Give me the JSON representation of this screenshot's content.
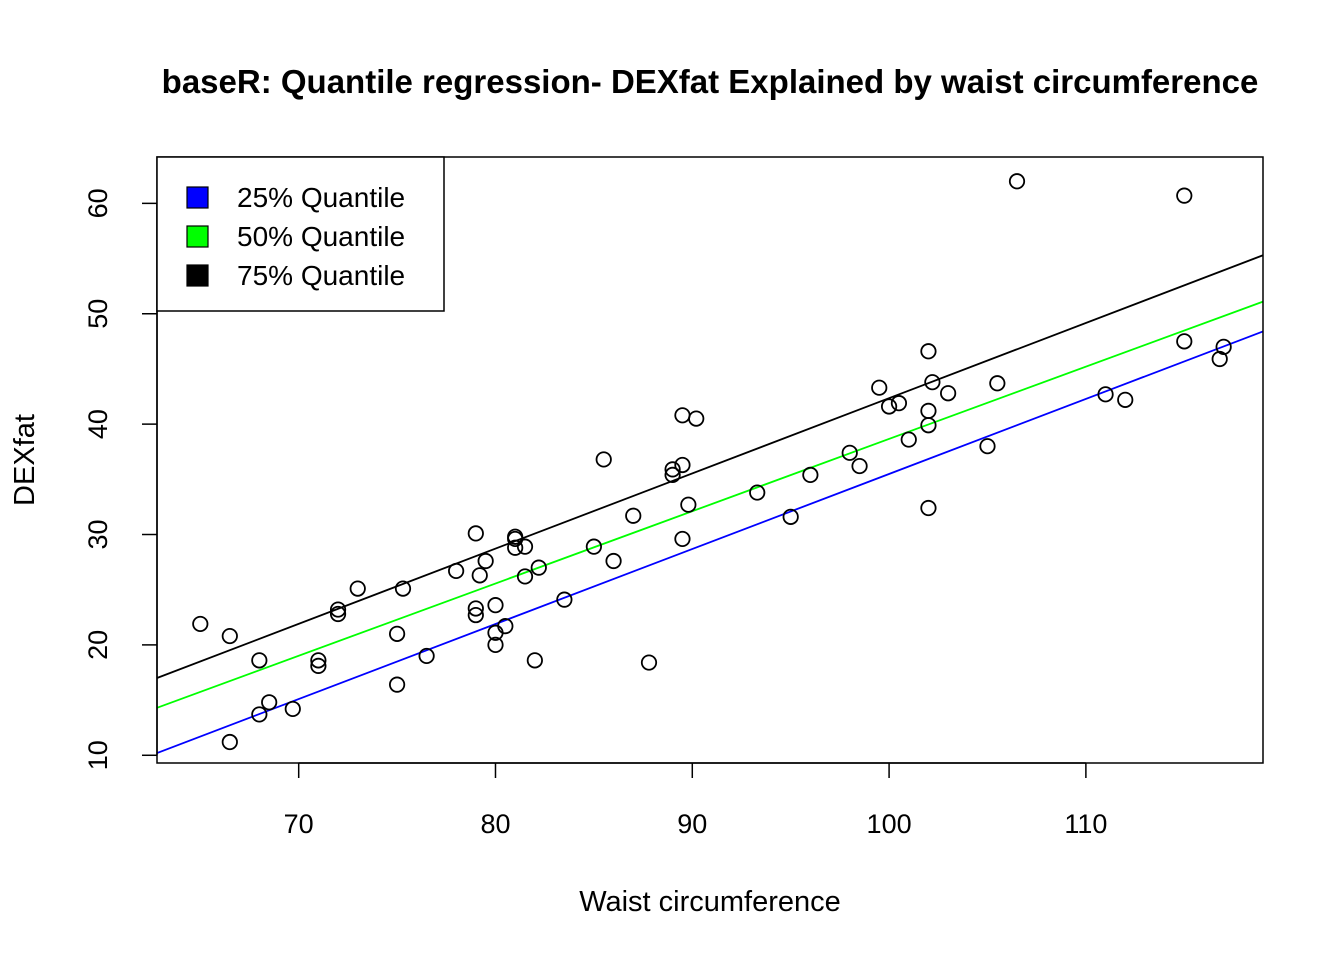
{
  "chart_data": {
    "type": "scatter",
    "title": "baseR: Quantile regression- DEXfat Explained by waist circumference",
    "xlabel": "Waist circumference",
    "ylabel": "DEXfat",
    "xlim": [
      62.8,
      119
    ],
    "ylim": [
      9.3,
      64.2
    ],
    "x_ticks": [
      70,
      80,
      90,
      100,
      110
    ],
    "y_ticks": [
      10,
      20,
      30,
      40,
      50,
      60
    ],
    "grid": false,
    "legend_position": "top-left",
    "legend": [
      {
        "label": "25% Quantile",
        "color": "#0000ff"
      },
      {
        "label": "50% Quantile",
        "color": "#00ff00"
      },
      {
        "label": "75% Quantile",
        "color": "#000000"
      }
    ],
    "lines": [
      {
        "name": "25% Quantile",
        "color": "#0000ff",
        "x": [
          62.8,
          119
        ],
        "y": [
          10.2,
          48.4
        ]
      },
      {
        "name": "50% Quantile",
        "color": "#00ff00",
        "x": [
          62.8,
          119
        ],
        "y": [
          14.3,
          51.1
        ]
      },
      {
        "name": "75% Quantile",
        "color": "#000000",
        "x": [
          62.8,
          119
        ],
        "y": [
          17.0,
          55.3
        ]
      }
    ],
    "points": [
      [
        65.0,
        21.9
      ],
      [
        66.5,
        20.8
      ],
      [
        66.5,
        11.2
      ],
      [
        68.0,
        18.6
      ],
      [
        68.0,
        13.7
      ],
      [
        68.5,
        14.8
      ],
      [
        69.7,
        14.2
      ],
      [
        71.0,
        18.6
      ],
      [
        71.0,
        18.1
      ],
      [
        72.0,
        23.2
      ],
      [
        72.0,
        22.8
      ],
      [
        73.0,
        25.1
      ],
      [
        75.0,
        21.0
      ],
      [
        75.0,
        16.4
      ],
      [
        75.3,
        25.1
      ],
      [
        76.5,
        19.0
      ],
      [
        78.0,
        26.7
      ],
      [
        79.0,
        30.1
      ],
      [
        79.0,
        23.3
      ],
      [
        79.0,
        22.7
      ],
      [
        79.2,
        26.3
      ],
      [
        79.5,
        27.6
      ],
      [
        80.0,
        23.6
      ],
      [
        80.0,
        21.1
      ],
      [
        80.0,
        20.0
      ],
      [
        80.5,
        21.7
      ],
      [
        81.0,
        29.8
      ],
      [
        81.0,
        29.6
      ],
      [
        81.0,
        28.8
      ],
      [
        81.5,
        28.9
      ],
      [
        81.5,
        26.2
      ],
      [
        82.0,
        18.6
      ],
      [
        82.2,
        27.0
      ],
      [
        83.5,
        24.1
      ],
      [
        85.0,
        28.9
      ],
      [
        85.5,
        36.8
      ],
      [
        86.0,
        27.6
      ],
      [
        87.0,
        31.7
      ],
      [
        87.8,
        18.4
      ],
      [
        89.0,
        35.9
      ],
      [
        89.0,
        35.4
      ],
      [
        89.5,
        40.8
      ],
      [
        89.5,
        36.3
      ],
      [
        89.5,
        29.6
      ],
      [
        89.8,
        32.7
      ],
      [
        90.2,
        40.5
      ],
      [
        93.3,
        33.8
      ],
      [
        95.0,
        31.6
      ],
      [
        96.0,
        35.4
      ],
      [
        98.0,
        37.4
      ],
      [
        98.5,
        36.2
      ],
      [
        99.5,
        43.3
      ],
      [
        100.0,
        41.6
      ],
      [
        100.5,
        41.9
      ],
      [
        101.0,
        38.6
      ],
      [
        102.0,
        46.6
      ],
      [
        102.0,
        41.2
      ],
      [
        102.0,
        39.9
      ],
      [
        102.0,
        32.4
      ],
      [
        102.2,
        43.8
      ],
      [
        103.0,
        42.8
      ],
      [
        105.0,
        38.0
      ],
      [
        105.5,
        43.7
      ],
      [
        106.5,
        62.0
      ],
      [
        111.0,
        42.7
      ],
      [
        112.0,
        42.2
      ],
      [
        115.0,
        60.7
      ],
      [
        115.0,
        47.5
      ],
      [
        116.8,
        45.9
      ],
      [
        117.0,
        47.0
      ]
    ]
  }
}
